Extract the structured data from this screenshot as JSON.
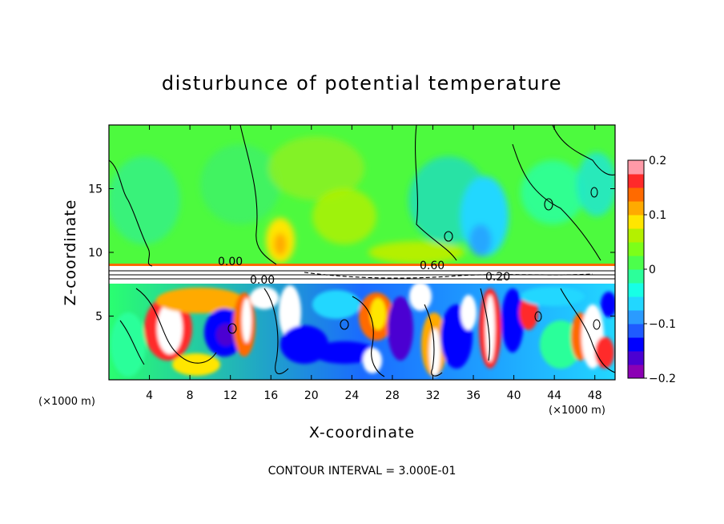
{
  "chart_data": {
    "type": "heatmap",
    "title": "disturbunce of potential temperature",
    "xlabel": "X-coordinate",
    "ylabel": "Z-coordinate",
    "x_unit_label": "(×1000 m)",
    "y_unit_label": "(×1000 m)",
    "xlim": [
      0,
      50
    ],
    "ylim": [
      0,
      20
    ],
    "x_ticks": [
      4,
      8,
      12,
      16,
      20,
      24,
      28,
      32,
      36,
      40,
      44,
      48
    ],
    "y_ticks": [
      5,
      10,
      15
    ],
    "colorbar": {
      "range": [
        -0.2,
        0.2
      ],
      "tick_labels": [
        "0.2",
        "0.1",
        "0",
        "−0.1",
        "−0.2"
      ],
      "tick_values": [
        0.2,
        0.1,
        0,
        -0.1,
        -0.2
      ],
      "colors": [
        "#8b00b4",
        "#4b00d2",
        "#0000ff",
        "#1f5bff",
        "#2a9bff",
        "#22d7ff",
        "#17ffe6",
        "#2cff9a",
        "#4cff4c",
        "#7cff19",
        "#b4f000",
        "#ffe600",
        "#ffaa00",
        "#ff6a00",
        "#ff2a2a",
        "#ff9aa8"
      ]
    },
    "contour_interval_label": "CONTOUR INTERVAL = 3.000E-01",
    "contour_labels": [
      "0.00",
      "0.00",
      "0.60",
      "0.20"
    ],
    "grid": false,
    "legend": "colorbar-right"
  }
}
